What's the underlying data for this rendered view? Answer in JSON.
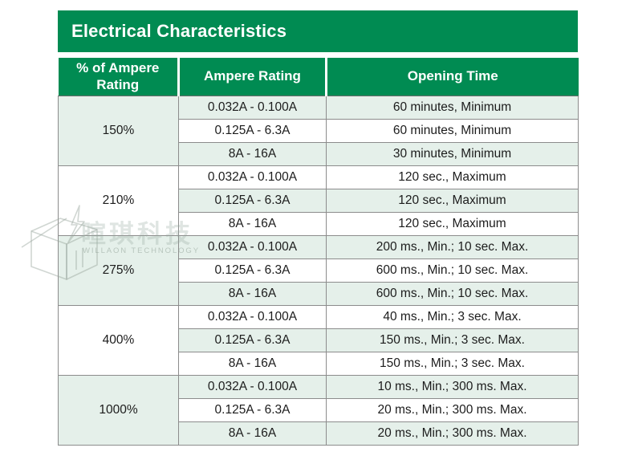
{
  "title": "Electrical Characteristics",
  "colors": {
    "header_green": "#008B52",
    "row_tint": "#E5F0EA",
    "grid_border": "#8C8C8C",
    "header_text": "#FFFFFF",
    "cell_text": "#1C1C1C"
  },
  "table": {
    "headers": [
      "% of Ampere Rating",
      "Ampere Rating",
      "Opening Time"
    ],
    "groups": [
      {
        "percent": "150%",
        "rows": [
          {
            "ampere": "0.032A - 0.100A",
            "time": "60 minutes, Minimum"
          },
          {
            "ampere": "0.125A - 6.3A",
            "time": "60 minutes, Minimum"
          },
          {
            "ampere": "8A - 16A",
            "time": "30 minutes, Minimum"
          }
        ]
      },
      {
        "percent": "210%",
        "rows": [
          {
            "ampere": "0.032A - 0.100A",
            "time": "120 sec., Maximum"
          },
          {
            "ampere": "0.125A - 6.3A",
            "time": "120 sec., Maximum"
          },
          {
            "ampere": "8A - 16A",
            "time": "120 sec., Maximum"
          }
        ]
      },
      {
        "percent": "275%",
        "rows": [
          {
            "ampere": "0.032A - 0.100A",
            "time": "200 ms., Min.; 10 sec. Max."
          },
          {
            "ampere": "0.125A - 6.3A",
            "time": "600 ms., Min.; 10 sec. Max."
          },
          {
            "ampere": "8A - 16A",
            "time": "600 ms., Min.; 10 sec. Max."
          }
        ]
      },
      {
        "percent": "400%",
        "rows": [
          {
            "ampere": "0.032A - 0.100A",
            "time": "40 ms., Min.; 3 sec. Max."
          },
          {
            "ampere": "0.125A - 6.3A",
            "time": "150 ms., Min.; 3 sec. Max."
          },
          {
            "ampere": "8A - 16A",
            "time": "150 ms., Min.; 3 sec. Max."
          }
        ]
      },
      {
        "percent": "1000%",
        "rows": [
          {
            "ampere": "0.032A - 0.100A",
            "time": "10 ms., Min.; 300 ms. Max."
          },
          {
            "ampere": "0.125A - 6.3A",
            "time": "20 ms., Min.; 300 ms. Max."
          },
          {
            "ampere": "8A - 16A",
            "time": "20 ms., Min.; 300 ms. Max."
          }
        ]
      }
    ]
  },
  "watermark": {
    "chinese": "暄琪科技",
    "english": "WILLAON TECHNOLOGY"
  }
}
